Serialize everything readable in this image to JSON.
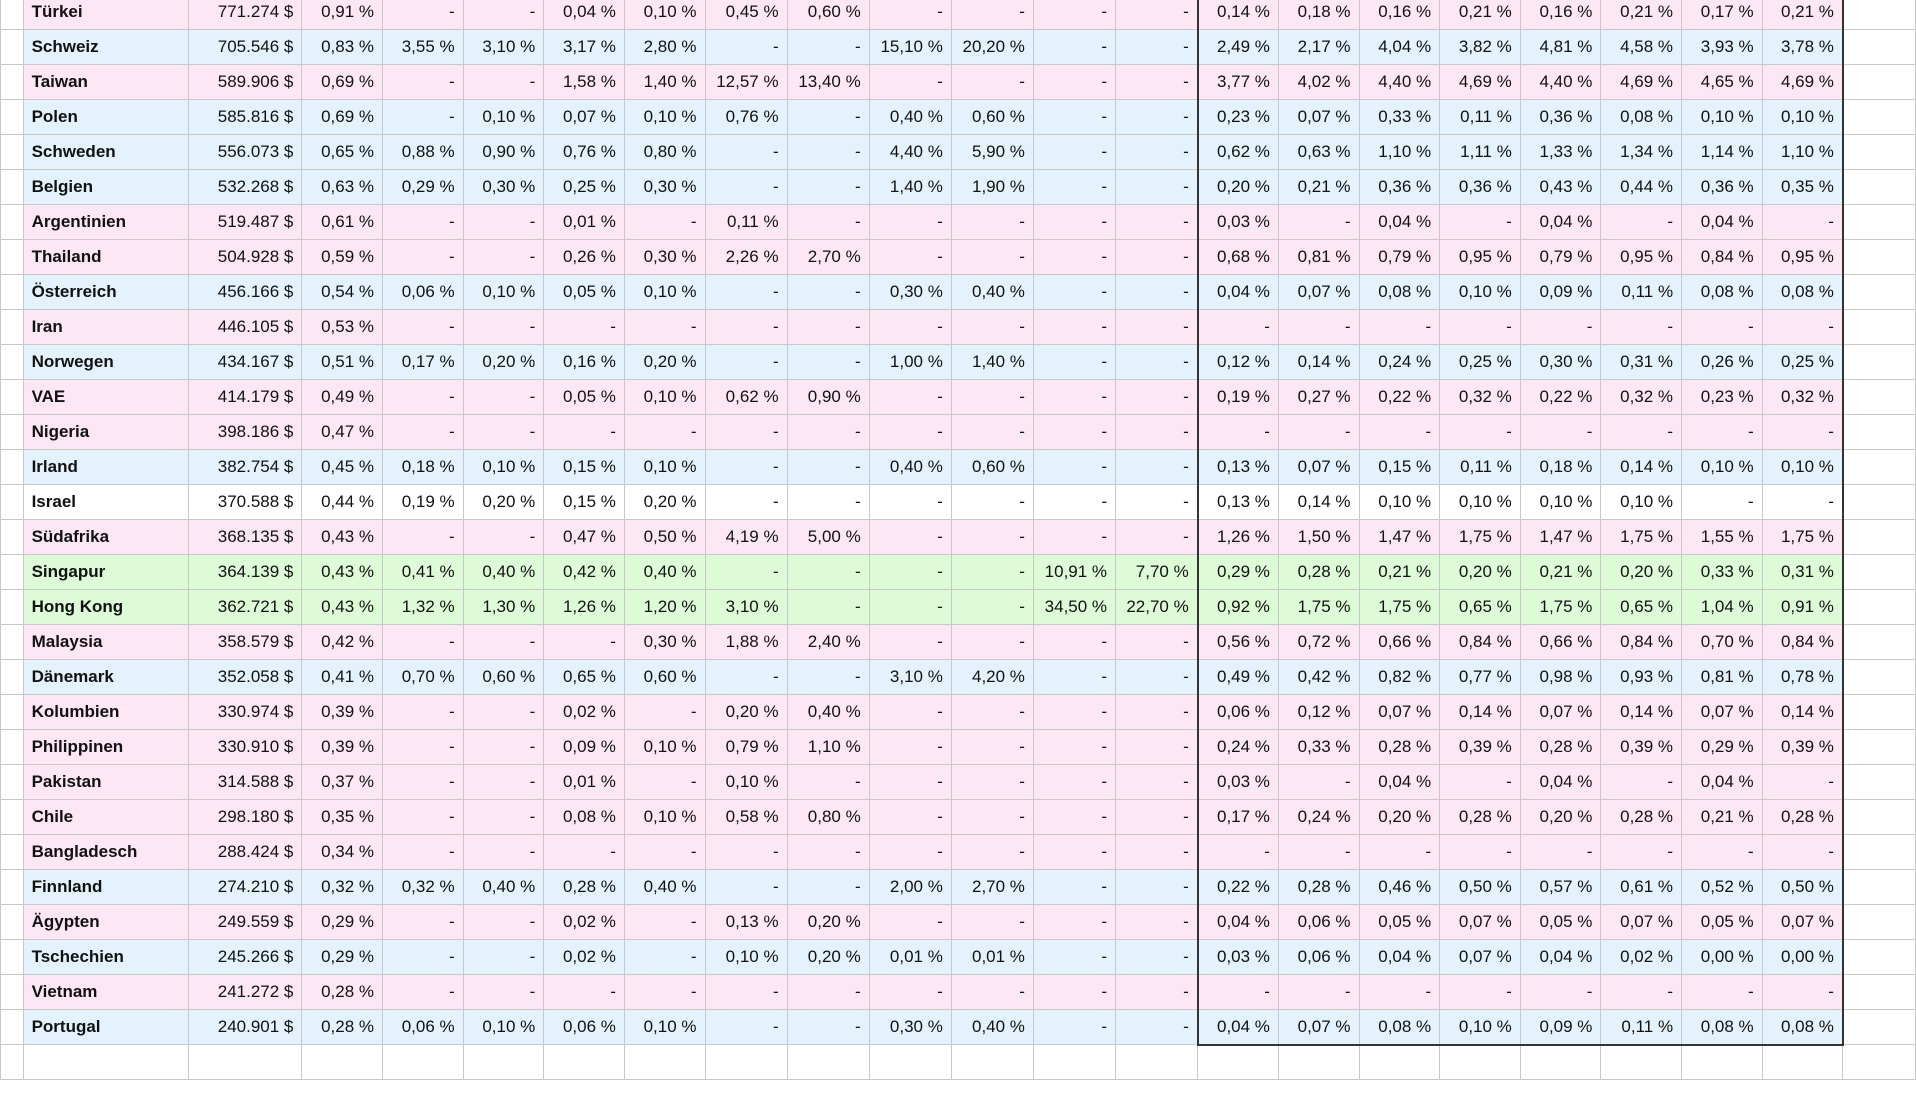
{
  "rows": [
    {
      "c": "pink",
      "v": [
        "Türkei",
        "771.274 $",
        "0,91 %",
        "-",
        "-",
        "0,04 %",
        "0,10 %",
        "0,45 %",
        "0,60 %",
        "-",
        "-",
        "-",
        "-",
        "0,14 %",
        "0,18 %",
        "0,16 %",
        "0,21 %",
        "0,16 %",
        "0,21 %",
        "0,17 %",
        "0,21 %"
      ]
    },
    {
      "c": "blue",
      "v": [
        "Schweiz",
        "705.546 $",
        "0,83 %",
        "3,55 %",
        "3,10 %",
        "3,17 %",
        "2,80 %",
        "-",
        "-",
        "15,10 %",
        "20,20 %",
        "-",
        "-",
        "2,49 %",
        "2,17 %",
        "4,04 %",
        "3,82 %",
        "4,81 %",
        "4,58 %",
        "3,93 %",
        "3,78 %"
      ]
    },
    {
      "c": "pink",
      "v": [
        "Taiwan",
        "589.906 $",
        "0,69 %",
        "-",
        "-",
        "1,58 %",
        "1,40 %",
        "12,57 %",
        "13,40 %",
        "-",
        "-",
        "-",
        "-",
        "3,77 %",
        "4,02 %",
        "4,40 %",
        "4,69 %",
        "4,40 %",
        "4,69 %",
        "4,65 %",
        "4,69 %"
      ]
    },
    {
      "c": "blue",
      "v": [
        "Polen",
        "585.816 $",
        "0,69 %",
        "-",
        "0,10 %",
        "0,07 %",
        "0,10 %",
        "0,76 %",
        "-",
        "0,40 %",
        "0,60 %",
        "-",
        "-",
        "0,23 %",
        "0,07 %",
        "0,33 %",
        "0,11 %",
        "0,36 %",
        "0,08 %",
        "0,10 %",
        "0,10 %"
      ]
    },
    {
      "c": "blue",
      "v": [
        "Schweden",
        "556.073 $",
        "0,65 %",
        "0,88 %",
        "0,90 %",
        "0,76 %",
        "0,80 %",
        "-",
        "-",
        "4,40 %",
        "5,90 %",
        "-",
        "-",
        "0,62 %",
        "0,63 %",
        "1,10 %",
        "1,11 %",
        "1,33 %",
        "1,34 %",
        "1,14 %",
        "1,10 %"
      ]
    },
    {
      "c": "blue",
      "v": [
        "Belgien",
        "532.268 $",
        "0,63 %",
        "0,29 %",
        "0,30 %",
        "0,25 %",
        "0,30 %",
        "-",
        "-",
        "1,40 %",
        "1,90 %",
        "-",
        "-",
        "0,20 %",
        "0,21 %",
        "0,36 %",
        "0,36 %",
        "0,43 %",
        "0,44 %",
        "0,36 %",
        "0,35 %"
      ]
    },
    {
      "c": "pink",
      "v": [
        "Argentinien",
        "519.487 $",
        "0,61 %",
        "-",
        "-",
        "0,01 %",
        "-",
        "0,11 %",
        "-",
        "-",
        "-",
        "-",
        "-",
        "0,03 %",
        "-",
        "0,04 %",
        "-",
        "0,04 %",
        "-",
        "0,04 %",
        "-"
      ]
    },
    {
      "c": "pink",
      "v": [
        "Thailand",
        "504.928 $",
        "0,59 %",
        "-",
        "-",
        "0,26 %",
        "0,30 %",
        "2,26 %",
        "2,70 %",
        "-",
        "-",
        "-",
        "-",
        "0,68 %",
        "0,81 %",
        "0,79 %",
        "0,95 %",
        "0,79 %",
        "0,95 %",
        "0,84 %",
        "0,95 %"
      ]
    },
    {
      "c": "blue",
      "v": [
        "Österreich",
        "456.166 $",
        "0,54 %",
        "0,06 %",
        "0,10 %",
        "0,05 %",
        "0,10 %",
        "-",
        "-",
        "0,30 %",
        "0,40 %",
        "-",
        "-",
        "0,04 %",
        "0,07 %",
        "0,08 %",
        "0,10 %",
        "0,09 %",
        "0,11 %",
        "0,08 %",
        "0,08 %"
      ]
    },
    {
      "c": "pink",
      "v": [
        "Iran",
        "446.105 $",
        "0,53 %",
        "-",
        "-",
        "-",
        "-",
        "-",
        "-",
        "-",
        "-",
        "-",
        "-",
        "-",
        "-",
        "-",
        "-",
        "-",
        "-",
        "-",
        "-"
      ]
    },
    {
      "c": "blue",
      "v": [
        "Norwegen",
        "434.167 $",
        "0,51 %",
        "0,17 %",
        "0,20 %",
        "0,16 %",
        "0,20 %",
        "-",
        "-",
        "1,00 %",
        "1,40 %",
        "-",
        "-",
        "0,12 %",
        "0,14 %",
        "0,24 %",
        "0,25 %",
        "0,30 %",
        "0,31 %",
        "0,26 %",
        "0,25 %"
      ]
    },
    {
      "c": "pink",
      "v": [
        "VAE",
        "414.179 $",
        "0,49 %",
        "-",
        "-",
        "0,05 %",
        "0,10 %",
        "0,62 %",
        "0,90 %",
        "-",
        "-",
        "-",
        "-",
        "0,19 %",
        "0,27 %",
        "0,22 %",
        "0,32 %",
        "0,22 %",
        "0,32 %",
        "0,23 %",
        "0,32 %"
      ]
    },
    {
      "c": "pink",
      "v": [
        "Nigeria",
        "398.186 $",
        "0,47 %",
        "-",
        "-",
        "-",
        "-",
        "-",
        "-",
        "-",
        "-",
        "-",
        "-",
        "-",
        "-",
        "-",
        "-",
        "-",
        "-",
        "-",
        "-"
      ]
    },
    {
      "c": "blue",
      "v": [
        "Irland",
        "382.754 $",
        "0,45 %",
        "0,18 %",
        "0,10 %",
        "0,15 %",
        "0,10 %",
        "-",
        "-",
        "0,40 %",
        "0,60 %",
        "-",
        "-",
        "0,13 %",
        "0,07 %",
        "0,15 %",
        "0,11 %",
        "0,18 %",
        "0,14 %",
        "0,10 %",
        "0,10 %"
      ]
    },
    {
      "c": "white",
      "v": [
        "Israel",
        "370.588 $",
        "0,44 %",
        "0,19 %",
        "0,20 %",
        "0,15 %",
        "0,20 %",
        "-",
        "-",
        "-",
        "-",
        "-",
        "-",
        "0,13 %",
        "0,14 %",
        "0,10 %",
        "0,10 %",
        "0,10 %",
        "0,10 %",
        "-",
        "-"
      ]
    },
    {
      "c": "pink",
      "v": [
        "Südafrika",
        "368.135 $",
        "0,43 %",
        "-",
        "-",
        "0,47 %",
        "0,50 %",
        "4,19 %",
        "5,00 %",
        "-",
        "-",
        "-",
        "-",
        "1,26 %",
        "1,50 %",
        "1,47 %",
        "1,75 %",
        "1,47 %",
        "1,75 %",
        "1,55 %",
        "1,75 %"
      ]
    },
    {
      "c": "green",
      "v": [
        "Singapur",
        "364.139 $",
        "0,43 %",
        "0,41 %",
        "0,40 %",
        "0,42 %",
        "0,40 %",
        "-",
        "-",
        "-",
        "-",
        "10,91 %",
        "7,70 %",
        "0,29 %",
        "0,28 %",
        "0,21 %",
        "0,20 %",
        "0,21 %",
        "0,20 %",
        "0,33 %",
        "0,31 %"
      ]
    },
    {
      "c": "green",
      "v": [
        "Hong Kong",
        "362.721 $",
        "0,43 %",
        "1,32 %",
        "1,30 %",
        "1,26 %",
        "1,20 %",
        "3,10 %",
        "-",
        "-",
        "-",
        "34,50 %",
        "22,70 %",
        "0,92 %",
        "1,75 %",
        "1,75 %",
        "0,65 %",
        "1,75 %",
        "0,65 %",
        "1,04 %",
        "0,91 %"
      ]
    },
    {
      "c": "pink",
      "v": [
        "Malaysia",
        "358.579 $",
        "0,42 %",
        "-",
        "-",
        "-",
        "0,30 %",
        "1,88 %",
        "2,40 %",
        "-",
        "-",
        "-",
        "-",
        "0,56 %",
        "0,72 %",
        "0,66 %",
        "0,84 %",
        "0,66 %",
        "0,84 %",
        "0,70 %",
        "0,84 %"
      ]
    },
    {
      "c": "blue",
      "v": [
        "Dänemark",
        "352.058 $",
        "0,41 %",
        "0,70 %",
        "0,60 %",
        "0,65 %",
        "0,60 %",
        "-",
        "-",
        "3,10 %",
        "4,20 %",
        "-",
        "-",
        "0,49 %",
        "0,42 %",
        "0,82 %",
        "0,77 %",
        "0,98 %",
        "0,93 %",
        "0,81 %",
        "0,78 %"
      ]
    },
    {
      "c": "pink",
      "v": [
        "Kolumbien",
        "330.974 $",
        "0,39 %",
        "-",
        "-",
        "0,02 %",
        "-",
        "0,20 %",
        "0,40 %",
        "-",
        "-",
        "-",
        "-",
        "0,06 %",
        "0,12 %",
        "0,07 %",
        "0,14 %",
        "0,07 %",
        "0,14 %",
        "0,07 %",
        "0,14 %"
      ]
    },
    {
      "c": "pink",
      "v": [
        "Philippinen",
        "330.910 $",
        "0,39 %",
        "-",
        "-",
        "0,09 %",
        "0,10 %",
        "0,79 %",
        "1,10 %",
        "-",
        "-",
        "-",
        "-",
        "0,24 %",
        "0,33 %",
        "0,28 %",
        "0,39 %",
        "0,28 %",
        "0,39 %",
        "0,29 %",
        "0,39 %"
      ]
    },
    {
      "c": "pink",
      "v": [
        "Pakistan",
        "314.588 $",
        "0,37 %",
        "-",
        "-",
        "0,01 %",
        "-",
        "0,10 %",
        "-",
        "-",
        "-",
        "-",
        "-",
        "0,03 %",
        "-",
        "0,04 %",
        "-",
        "0,04 %",
        "-",
        "0,04 %",
        "-"
      ]
    },
    {
      "c": "pink",
      "v": [
        "Chile",
        "298.180 $",
        "0,35 %",
        "-",
        "-",
        "0,08 %",
        "0,10 %",
        "0,58 %",
        "0,80 %",
        "-",
        "-",
        "-",
        "-",
        "0,17 %",
        "0,24 %",
        "0,20 %",
        "0,28 %",
        "0,20 %",
        "0,28 %",
        "0,21 %",
        "0,28 %"
      ]
    },
    {
      "c": "pink",
      "v": [
        "Bangladesch",
        "288.424 $",
        "0,34 %",
        "-",
        "-",
        "-",
        "-",
        "-",
        "-",
        "-",
        "-",
        "-",
        "-",
        "-",
        "-",
        "-",
        "-",
        "-",
        "-",
        "-",
        "-"
      ]
    },
    {
      "c": "blue",
      "v": [
        "Finnland",
        "274.210 $",
        "0,32 %",
        "0,32 %",
        "0,40 %",
        "0,28 %",
        "0,40 %",
        "-",
        "-",
        "2,00 %",
        "2,70 %",
        "-",
        "-",
        "0,22 %",
        "0,28 %",
        "0,46 %",
        "0,50 %",
        "0,57 %",
        "0,61 %",
        "0,52 %",
        "0,50 %"
      ]
    },
    {
      "c": "pink",
      "v": [
        "Ägypten",
        "249.559 $",
        "0,29 %",
        "-",
        "-",
        "0,02 %",
        "-",
        "0,13 %",
        "0,20 %",
        "-",
        "-",
        "-",
        "-",
        "0,04 %",
        "0,06 %",
        "0,05 %",
        "0,07 %",
        "0,05 %",
        "0,07 %",
        "0,05 %",
        "0,07 %"
      ]
    },
    {
      "c": "blue",
      "v": [
        "Tschechien",
        "245.266 $",
        "0,29 %",
        "-",
        "-",
        "0,02 %",
        "-",
        "0,10 %",
        "0,20 %",
        "0,01 %",
        "0,01 %",
        "-",
        "-",
        "0,03 %",
        "0,06 %",
        "0,04 %",
        "0,07 %",
        "0,04 %",
        "0,02 %",
        "0,00 %",
        "0,00 %"
      ]
    },
    {
      "c": "pink",
      "v": [
        "Vietnam",
        "241.272 $",
        "0,28 %",
        "-",
        "-",
        "-",
        "-",
        "-",
        "-",
        "-",
        "-",
        "-",
        "-",
        "-",
        "-",
        "-",
        "-",
        "-",
        "-",
        "-",
        "-"
      ]
    },
    {
      "c": "blue",
      "v": [
        "Portugal",
        "240.901 $",
        "0,28 %",
        "0,06 %",
        "0,10 %",
        "0,06 %",
        "0,10 %",
        "-",
        "-",
        "0,30 %",
        "0,40 %",
        "-",
        "-",
        "0,04 %",
        "0,07 %",
        "0,08 %",
        "0,10 %",
        "0,09 %",
        "0,11 %",
        "0,08 %",
        "0,08 %"
      ]
    }
  ]
}
